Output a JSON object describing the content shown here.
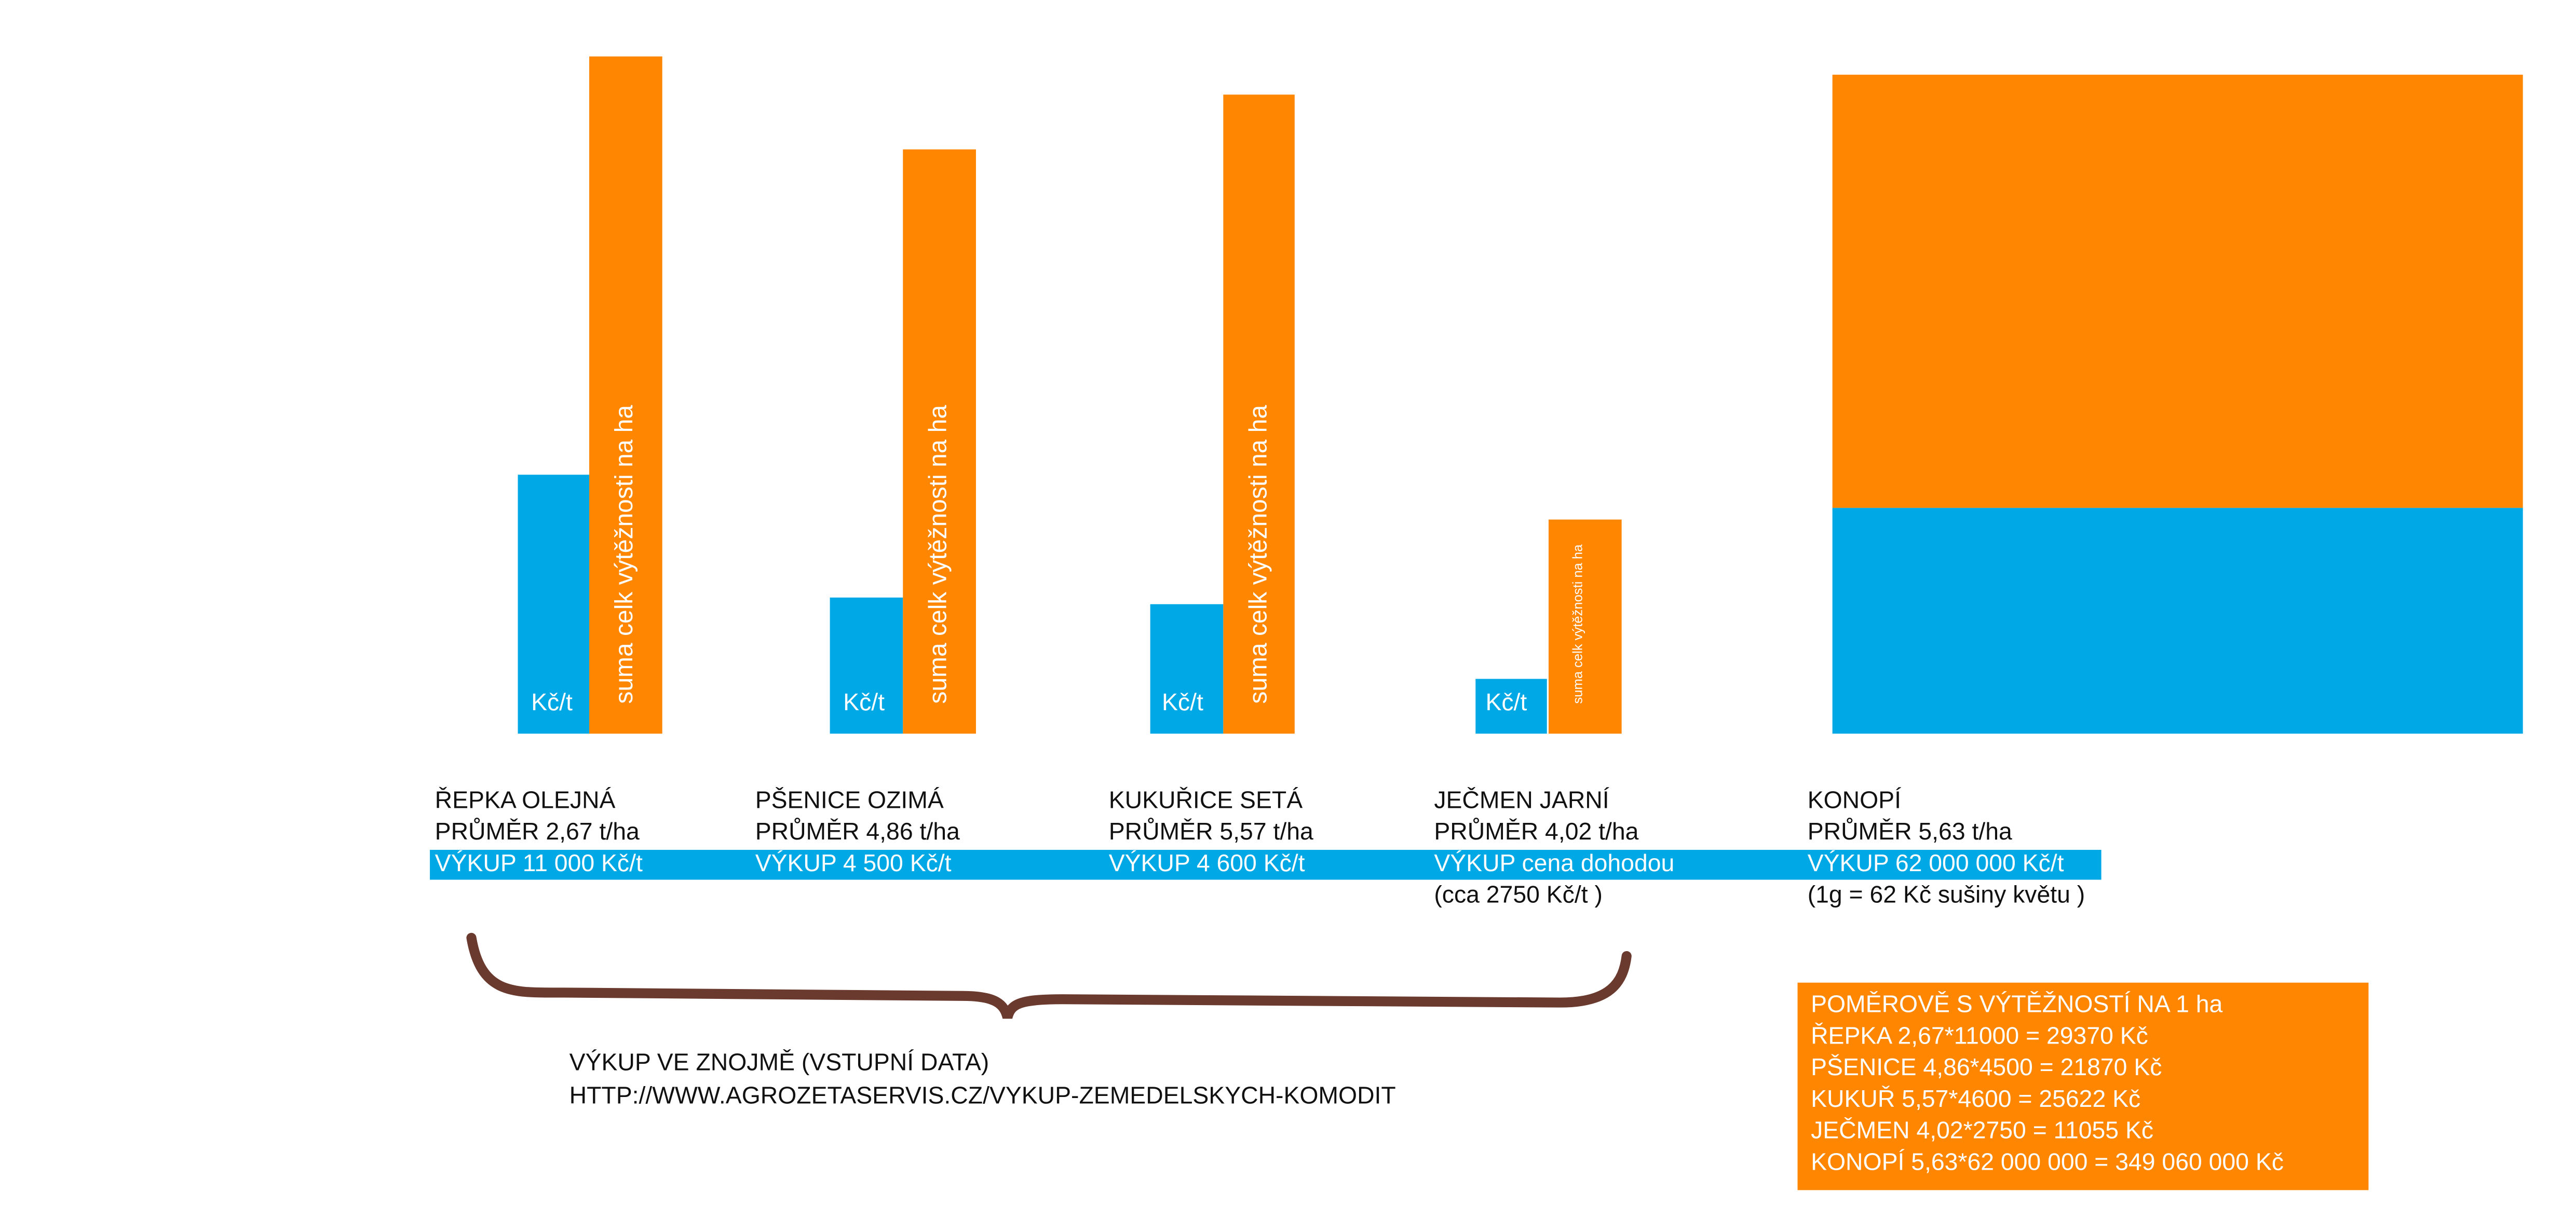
{
  "bar_labels": {
    "price": "Kč/t",
    "total": "suma celk výtěžnosti na ha"
  },
  "crops": [
    {
      "name": "ŘEPKA OLEJNÁ",
      "average": "PRŮMĚR 2,67 t/ha",
      "purchase": "VÝKUP 11 000 Kč/t"
    },
    {
      "name": "PŠENICE OZIMÁ",
      "average": "PRŮMĚR 4,86 t/ha",
      "purchase": "VÝKUP 4 500 Kč/t"
    },
    {
      "name": "KUKUŘICE SETÁ",
      "average": "PRŮMĚR 5,57 t/ha",
      "purchase": "VÝKUP 4 600 Kč/t"
    },
    {
      "name": "JEČMEN JARNÍ",
      "average": "PRŮMĚR 4,02 t/ha",
      "purchase": "VÝKUP cena dohodou",
      "note": "(cca 2750 Kč/t )"
    },
    {
      "name": "KONOPÍ",
      "average": "PRŮMĚR 5,63 t/ha",
      "purchase": "VÝKUP 62 000 000 Kč/t",
      "note": "(1g = 62 Kč sušiny květu )"
    }
  ],
  "source": {
    "title": "VÝKUP VE ZNOJMĚ (VSTUPNÍ DATA)",
    "url": "HTTP://WWW.AGROZETASERVIS.CZ/VYKUP-ZEMEDELSKYCH-KOMODIT"
  },
  "summary": [
    "POMĚROVĚ S VÝTĚŽNOSTÍ NA 1 ha",
    "ŘEPKA 2,67*11000 = 29370 Kč",
    "PŠENICE 4,86*4500 = 21870 Kč",
    "KUKUŘ 5,57*4600 = 25622 Kč",
    "JEČMEN 4,02*2750 = 11055 Kč",
    "KONOPÍ 5,63*62 000 000 = 349 060 000 Kč"
  ]
}
